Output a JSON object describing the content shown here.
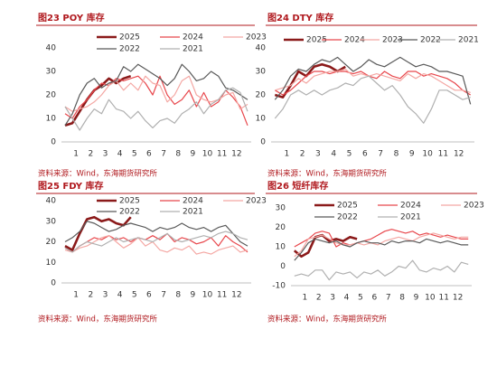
{
  "chart_data": [
    {
      "type": "line",
      "title": "图23  POY 库存",
      "source": "资料来源：Wind，东海期货研究所",
      "x": [
        0.25,
        0.75,
        1.25,
        1.75,
        2.25,
        2.75,
        3.25,
        3.75,
        4.25,
        4.75,
        5.25,
        5.75,
        6.25,
        6.75,
        7.25,
        7.75,
        8.25,
        8.75,
        9.25,
        9.75,
        10.25,
        10.75,
        11.25,
        11.75,
        12.25,
        12.75
      ],
      "xlim": [
        0,
        13
      ],
      "xticks": [
        1,
        2,
        3,
        4,
        5,
        6,
        7,
        8,
        9,
        10,
        11,
        12
      ],
      "ylim": [
        0,
        40
      ],
      "yticks": [
        0,
        10,
        20,
        30,
        40
      ],
      "series": [
        {
          "name": "2025",
          "color": "#8b1a1a",
          "values": [
            7,
            8,
            13,
            18,
            22,
            24,
            27,
            25,
            27,
            28,
            null,
            null,
            null,
            null,
            null,
            null,
            null,
            null,
            null,
            null,
            null,
            null,
            null,
            null,
            null,
            null
          ]
        },
        {
          "name": "2024",
          "color": "#e8474c",
          "values": [
            12,
            10,
            15,
            18,
            22,
            25,
            24,
            27,
            26,
            27,
            28,
            25,
            20,
            28,
            20,
            16,
            18,
            22,
            15,
            21,
            15,
            17,
            22,
            19,
            15,
            7
          ]
        },
        {
          "name": "2023",
          "color": "#f4a7a3",
          "values": [
            15,
            13,
            14,
            15,
            17,
            20,
            24,
            26,
            22,
            25,
            22,
            28,
            25,
            24,
            17,
            20,
            26,
            28,
            20,
            18,
            17,
            18,
            20,
            21,
            14,
            16
          ]
        },
        {
          "name": "2022",
          "color": "#595959",
          "values": [
            7,
            12,
            20,
            25,
            27,
            23,
            25,
            26,
            32,
            30,
            33,
            31,
            29,
            27,
            24,
            27,
            33,
            30,
            26,
            27,
            30,
            28,
            23,
            22,
            20,
            18
          ]
        },
        {
          "name": "2021",
          "color": "#b0b0b0",
          "values": [
            15,
            10,
            5,
            10,
            14,
            12,
            18,
            14,
            13,
            10,
            13,
            9,
            6,
            9,
            10,
            8,
            12,
            14,
            17,
            12,
            16,
            18,
            22,
            23,
            21,
            13
          ]
        }
      ]
    },
    {
      "type": "line",
      "title": "图24  DTY 库存",
      "source": "资料来源：Wind，东海期货研究所",
      "x": [
        0.25,
        0.75,
        1.25,
        1.75,
        2.25,
        2.75,
        3.25,
        3.75,
        4.25,
        4.75,
        5.25,
        5.75,
        6.25,
        6.75,
        7.25,
        7.75,
        8.25,
        8.75,
        9.25,
        9.75,
        10.25,
        10.75,
        11.25,
        11.75,
        12.25,
        12.75
      ],
      "xlim": [
        0,
        13
      ],
      "xticks": [
        1,
        2,
        3,
        4,
        5,
        6,
        7,
        8,
        9,
        10,
        11,
        12
      ],
      "ylim": [
        0,
        40
      ],
      "yticks": [
        0,
        10,
        20,
        30,
        40
      ],
      "series": [
        {
          "name": "2025",
          "color": "#8b1a1a",
          "values": [
            20,
            19,
            24,
            30,
            28,
            32,
            33,
            32,
            30,
            32,
            null,
            null,
            null,
            null,
            null,
            null,
            null,
            null,
            null,
            null,
            null,
            null,
            null,
            null,
            null,
            null
          ]
        },
        {
          "name": "2024",
          "color": "#e8474c",
          "values": [
            22,
            20,
            22,
            25,
            28,
            30,
            30,
            29,
            30,
            30,
            29,
            30,
            28,
            27,
            30,
            28,
            27,
            30,
            30,
            28,
            29,
            28,
            27,
            25,
            22,
            20
          ]
        },
        {
          "name": "2023",
          "color": "#f4a7a3",
          "values": [
            22,
            23,
            24,
            27,
            25,
            28,
            29,
            30,
            30,
            31,
            28,
            29,
            28,
            29,
            28,
            27,
            26,
            29,
            27,
            29,
            28,
            26,
            24,
            22,
            22,
            21
          ]
        },
        {
          "name": "2022",
          "color": "#595959",
          "values": [
            18,
            22,
            28,
            31,
            30,
            33,
            35,
            34,
            36,
            33,
            30,
            32,
            35,
            33,
            32,
            34,
            36,
            34,
            32,
            33,
            32,
            30,
            30,
            29,
            28,
            16
          ]
        },
        {
          "name": "2021",
          "color": "#b0b0b0",
          "values": [
            10,
            14,
            20,
            22,
            20,
            22,
            20,
            22,
            23,
            25,
            24,
            27,
            28,
            25,
            22,
            24,
            20,
            15,
            12,
            8,
            14,
            22,
            22,
            20,
            18,
            19
          ]
        }
      ]
    },
    {
      "type": "line",
      "title": "图25  FDY 库存",
      "source": "资料来源：Wind，东海期货研究所",
      "x": [
        0.25,
        0.75,
        1.25,
        1.75,
        2.25,
        2.75,
        3.25,
        3.75,
        4.25,
        4.75,
        5.25,
        5.75,
        6.25,
        6.75,
        7.25,
        7.75,
        8.25,
        8.75,
        9.25,
        9.75,
        10.25,
        10.75,
        11.25,
        11.75,
        12.25,
        12.75
      ],
      "xlim": [
        0,
        13
      ],
      "xticks": [
        1,
        2,
        3,
        4,
        5,
        6,
        7,
        8,
        9,
        10,
        11,
        12
      ],
      "ylim": [
        0,
        40
      ],
      "yticks": [
        0,
        10,
        20,
        30,
        40
      ],
      "series": [
        {
          "name": "2025",
          "color": "#8b1a1a",
          "values": [
            18,
            16,
            24,
            31,
            32,
            30,
            31,
            29,
            28,
            32,
            null,
            null,
            null,
            null,
            null,
            null,
            null,
            null,
            null,
            null,
            null,
            null,
            null,
            null,
            null,
            null
          ]
        },
        {
          "name": "2024",
          "color": "#e8474c",
          "values": [
            17,
            15,
            18,
            20,
            22,
            21,
            23,
            21,
            22,
            20,
            22,
            21,
            23,
            21,
            24,
            20,
            22,
            21,
            19,
            20,
            22,
            18,
            23,
            20,
            18,
            15
          ]
        },
        {
          "name": "2023",
          "color": "#f4a7a3",
          "values": [
            16,
            15,
            17,
            18,
            20,
            22,
            23,
            20,
            17,
            19,
            22,
            18,
            20,
            16,
            15,
            17,
            16,
            18,
            14,
            15,
            14,
            16,
            17,
            18,
            15,
            16
          ]
        },
        {
          "name": "2022",
          "color": "#595959",
          "values": [
            20,
            22,
            25,
            30,
            29,
            27,
            25,
            26,
            28,
            29,
            28,
            27,
            25,
            27,
            26,
            27,
            29,
            27,
            26,
            27,
            25,
            27,
            28,
            24,
            20,
            18
          ]
        },
        {
          "name": "2021",
          "color": "#b0b0b0",
          "values": [
            17,
            15,
            18,
            20,
            19,
            18,
            20,
            22,
            20,
            21,
            22,
            21,
            20,
            22,
            24,
            21,
            20,
            21,
            22,
            23,
            22,
            24,
            25,
            24,
            22,
            21
          ]
        }
      ]
    },
    {
      "type": "line",
      "title": "图26  短纤库存",
      "source": "资料来源：Wind，东海期货研究所",
      "x": [
        0.25,
        0.75,
        1.25,
        1.75,
        2.25,
        2.75,
        3.25,
        3.75,
        4.25,
        4.75,
        5.25,
        5.75,
        6.25,
        6.75,
        7.25,
        7.75,
        8.25,
        8.75,
        9.25,
        9.75,
        10.25,
        10.75,
        11.25,
        11.75,
        12.25,
        12.75
      ],
      "xlim": [
        0,
        13
      ],
      "xticks": [
        1,
        2,
        3,
        4,
        5,
        6,
        7,
        8,
        9,
        10,
        11,
        12
      ],
      "ylim": [
        -10,
        30
      ],
      "yticks": [
        -10,
        0,
        10,
        20,
        30
      ],
      "series": [
        {
          "name": "2025",
          "color": "#8b1a1a",
          "values": [
            8,
            5,
            7,
            15,
            16,
            13,
            14,
            13,
            15,
            14,
            null,
            null,
            null,
            null,
            null,
            null,
            null,
            null,
            null,
            null,
            null,
            null,
            null,
            null,
            null,
            null
          ]
        },
        {
          "name": "2024",
          "color": "#e8474c",
          "values": [
            10,
            12,
            14,
            17,
            18,
            17,
            10,
            12,
            11,
            12,
            13,
            14,
            16,
            18,
            19,
            18,
            17,
            18,
            16,
            17,
            16,
            15,
            16,
            15,
            14,
            14
          ]
        },
        {
          "name": "2023",
          "color": "#f4a7a3",
          "values": [
            5,
            8,
            14,
            15,
            16,
            14,
            12,
            11,
            11,
            12,
            11,
            12,
            11,
            13,
            14,
            15,
            14,
            13,
            15,
            16,
            17,
            16,
            15,
            14,
            15,
            15
          ]
        },
        {
          "name": "2022",
          "color": "#595959",
          "values": [
            3,
            7,
            12,
            14,
            13,
            12,
            13,
            11,
            10,
            12,
            13,
            12,
            12,
            11,
            13,
            12,
            13,
            13,
            12,
            14,
            13,
            12,
            13,
            12,
            11,
            11
          ]
        },
        {
          "name": "2021",
          "color": "#b0b0b0",
          "values": [
            -5,
            -4,
            -5,
            -2,
            -2,
            -7,
            -3,
            -4,
            -3,
            -6,
            -3,
            -4,
            -2,
            -5,
            -3,
            0,
            -1,
            3,
            -2,
            -3,
            -1,
            -2,
            0,
            -3,
            2,
            1
          ]
        }
      ]
    }
  ]
}
